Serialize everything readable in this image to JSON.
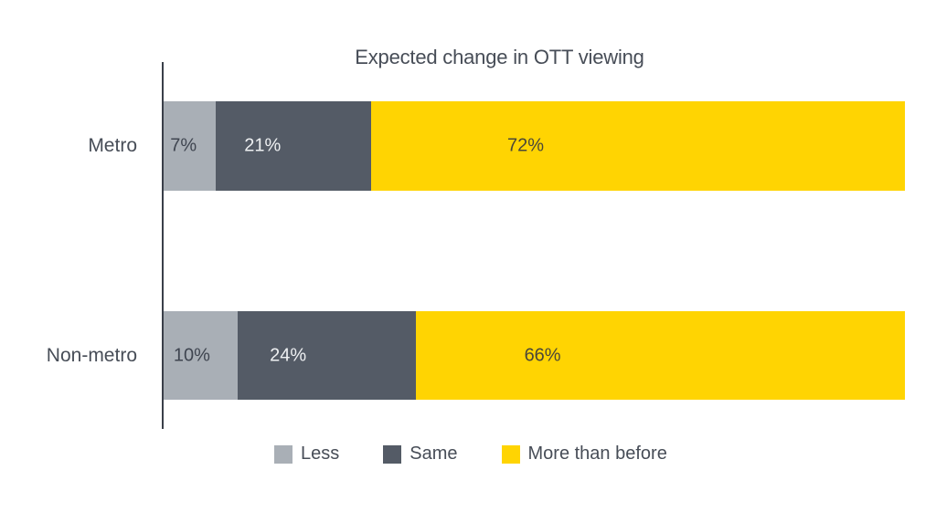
{
  "chart_data": {
    "type": "bar",
    "variant": "horizontal-stacked",
    "title": "Expected change in OTT viewing",
    "categories": [
      "Metro",
      "Non-metro"
    ],
    "series": [
      {
        "name": "Less",
        "color": "#a9afb6",
        "label_color": "#3f4550",
        "values": [
          7,
          10
        ]
      },
      {
        "name": "Same",
        "color": "#545b66",
        "label_color": "#eef0f2",
        "values": [
          21,
          24
        ]
      },
      {
        "name": "More than before",
        "color": "#ffd402",
        "label_color": "#4a4739",
        "values": [
          72,
          66
        ]
      }
    ],
    "value_labels": [
      [
        "7%",
        "21%",
        "72%"
      ],
      [
        "10%",
        "24%",
        "66%"
      ]
    ],
    "xlim": [
      0,
      100
    ],
    "grid": false,
    "legend_position": "bottom",
    "axis_line_color": "#3a3f49",
    "title_color": "#474d57",
    "background_color": "#ffffff"
  }
}
